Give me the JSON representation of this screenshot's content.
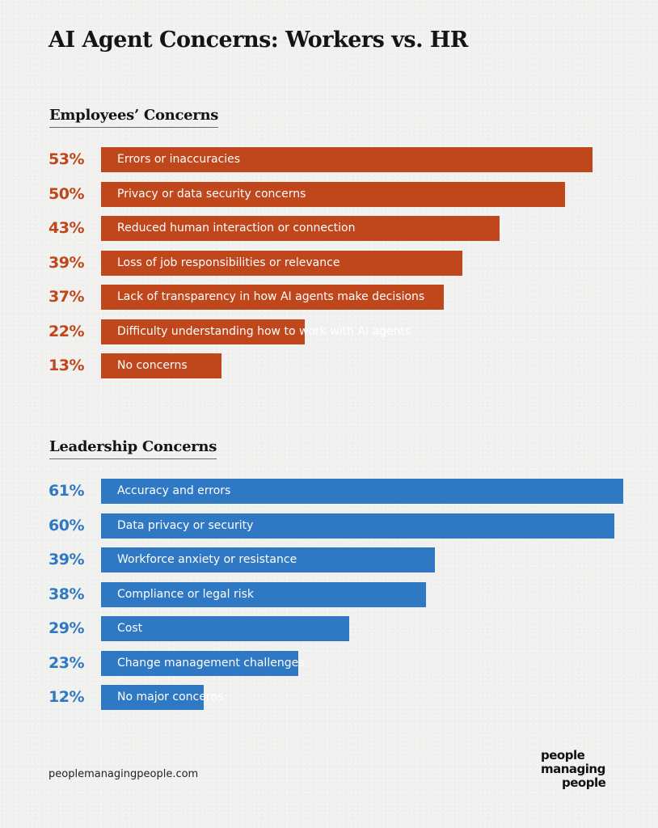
{
  "title": "AI Agent Concerns: Workers vs. HR",
  "colors": {
    "employees": "#c0461c",
    "leadership": "#2f78c4",
    "text": "#141414"
  },
  "chart_data": [
    {
      "type": "bar",
      "orientation": "horizontal",
      "title": "Employees’ Concerns",
      "unit": "%",
      "categories": [
        "Errors or inaccuracies",
        "Privacy or data security concerns",
        "Reduced human interaction or connection",
        "Loss of job responsibilities or relevance",
        "Lack of transparency in how AI agents make decisions",
        "Difficulty understanding how to work with AI agents",
        "No concerns"
      ],
      "values": [
        53,
        50,
        43,
        39,
        37,
        22,
        13
      ],
      "labels": [
        "53%",
        "50%",
        "43%",
        "39%",
        "37%",
        "22%",
        "13%"
      ],
      "color": "#c0461c"
    },
    {
      "type": "bar",
      "orientation": "horizontal",
      "title": "Leadership Concerns",
      "unit": "%",
      "categories": [
        "Accuracy and errors",
        "Data privacy or security",
        "Workforce anxiety or resistance",
        "Compliance or legal risk",
        "Cost",
        "Change management challenges",
        "No major concerns"
      ],
      "values": [
        61,
        60,
        39,
        38,
        29,
        23,
        12
      ],
      "labels": [
        "61%",
        "60%",
        "39%",
        "38%",
        "29%",
        "23%",
        "12%"
      ],
      "color": "#2f78c4"
    }
  ],
  "footer": {
    "url": "peoplemanagingpeople.com",
    "logo_lines": [
      "people",
      "managing",
      "people"
    ]
  }
}
